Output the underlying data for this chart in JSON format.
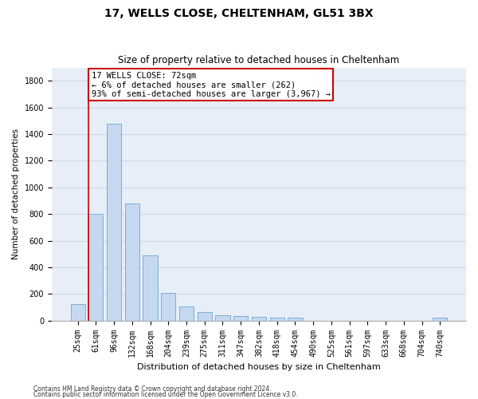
{
  "title1": "17, WELLS CLOSE, CHELTENHAM, GL51 3BX",
  "title2": "Size of property relative to detached houses in Cheltenham",
  "xlabel": "Distribution of detached houses by size in Cheltenham",
  "ylabel": "Number of detached properties",
  "categories": [
    "25sqm",
    "61sqm",
    "96sqm",
    "132sqm",
    "168sqm",
    "204sqm",
    "239sqm",
    "275sqm",
    "311sqm",
    "347sqm",
    "382sqm",
    "418sqm",
    "454sqm",
    "490sqm",
    "525sqm",
    "561sqm",
    "597sqm",
    "633sqm",
    "668sqm",
    "704sqm",
    "740sqm"
  ],
  "values": [
    125,
    800,
    1480,
    880,
    490,
    205,
    105,
    65,
    40,
    35,
    30,
    25,
    20,
    0,
    0,
    0,
    0,
    0,
    0,
    0,
    20
  ],
  "bar_color": "#c5d8f0",
  "bar_edge_color": "#7bafd4",
  "vline_color": "#cc0000",
  "vline_x_index": 1,
  "ylim": [
    0,
    1900
  ],
  "yticks": [
    0,
    200,
    400,
    600,
    800,
    1000,
    1200,
    1400,
    1600,
    1800
  ],
  "annotation_text": "17 WELLS CLOSE: 72sqm\n← 6% of detached houses are smaller (262)\n93% of semi-detached houses are larger (3,967) →",
  "annotation_box_facecolor": "#ffffff",
  "annotation_box_edgecolor": "#cc0000",
  "footer1": "Contains HM Land Registry data © Crown copyright and database right 2024.",
  "footer2": "Contains public sector information licensed under the Open Government Licence v3.0.",
  "grid_color": "#d0d8e8",
  "bg_color": "#e8eef8",
  "title1_fontsize": 10,
  "title2_fontsize": 8.5,
  "xlabel_fontsize": 8,
  "ylabel_fontsize": 7.5,
  "tick_fontsize": 7,
  "annotation_fontsize": 7.5,
  "footer_fontsize": 5.5
}
